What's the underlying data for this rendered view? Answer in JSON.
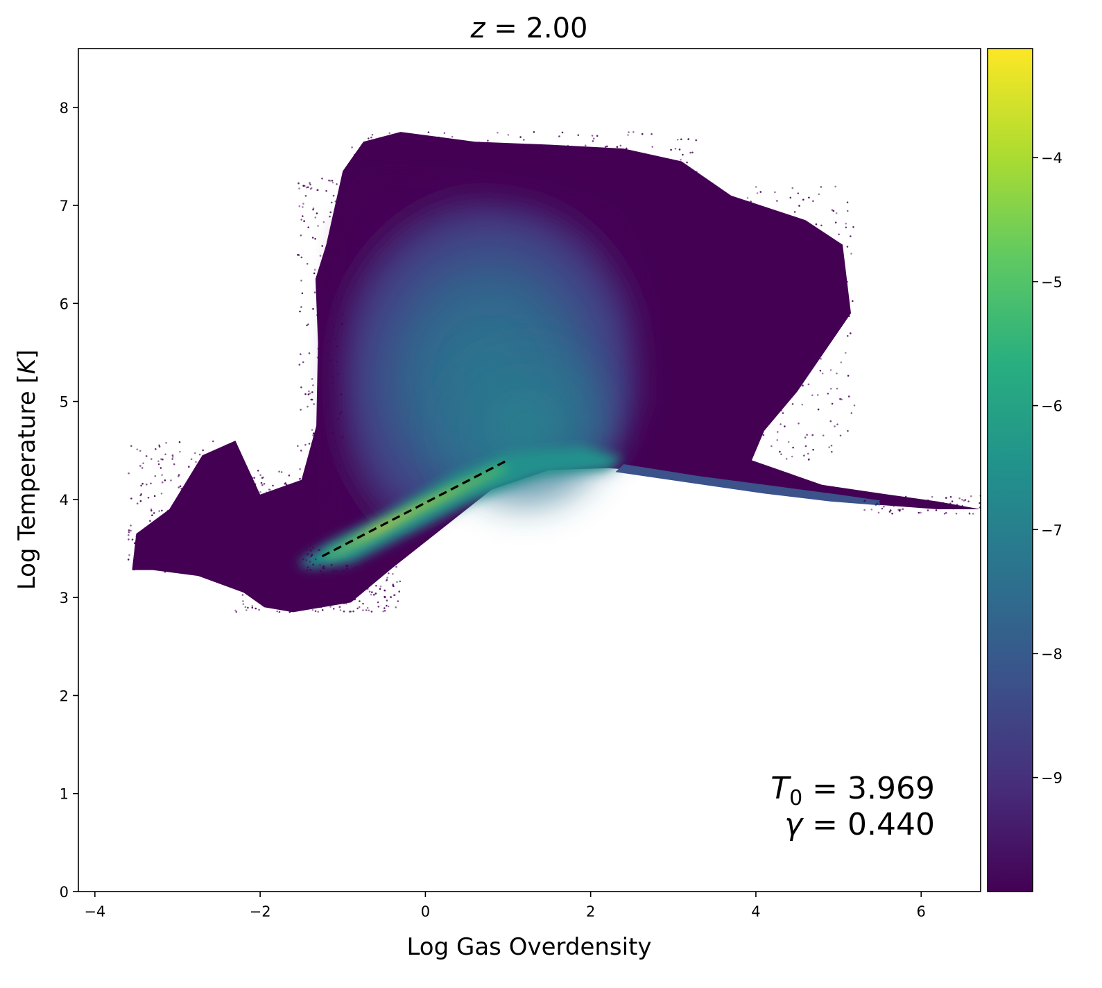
{
  "chart_data": {
    "type": "heatmap",
    "title": {
      "var": "z",
      "eq": " = ",
      "value": "2.00"
    },
    "xlabel": "Log Gas Overdensity",
    "ylabel": {
      "text": "Log Temperature ",
      "bracket_open": "[",
      "unit": "K",
      "bracket_close": "]"
    },
    "xlim": [
      -4.2,
      6.72
    ],
    "ylim": [
      0,
      8.6
    ],
    "x_ticks": [
      {
        "value": -4,
        "label": "−4"
      },
      {
        "value": -2,
        "label": "−2"
      },
      {
        "value": 0,
        "label": "0"
      },
      {
        "value": 2,
        "label": "2"
      },
      {
        "value": 4,
        "label": "4"
      },
      {
        "value": 6,
        "label": "6"
      }
    ],
    "y_ticks": [
      {
        "value": 0,
        "label": "0"
      },
      {
        "value": 1,
        "label": "1"
      },
      {
        "value": 2,
        "label": "2"
      },
      {
        "value": 3,
        "label": "3"
      },
      {
        "value": 4,
        "label": "4"
      },
      {
        "value": 5,
        "label": "5"
      },
      {
        "value": 6,
        "label": "6"
      },
      {
        "value": 7,
        "label": "7"
      },
      {
        "value": 8,
        "label": "8"
      }
    ],
    "grid": false,
    "colormap": "viridis",
    "colorbar": {
      "range": [
        -9.92,
        -3.12
      ],
      "ticks": [
        {
          "value": -4,
          "label": "−4"
        },
        {
          "value": -5,
          "label": "−5"
        },
        {
          "value": -6,
          "label": "−6"
        },
        {
          "value": -7,
          "label": "−7"
        },
        {
          "value": -8,
          "label": "−8"
        },
        {
          "value": -9,
          "label": "−9"
        }
      ]
    },
    "fit_line": {
      "x": [
        -1.25,
        0.97
      ],
      "y": [
        3.42,
        4.39
      ],
      "style": "dashed",
      "color": "#000000"
    },
    "distribution_outline": [
      [
        -3.55,
        3.28
      ],
      [
        -3.5,
        3.65
      ],
      [
        -3.1,
        3.9
      ],
      [
        -2.7,
        4.45
      ],
      [
        -2.3,
        4.6
      ],
      [
        -2.0,
        4.05
      ],
      [
        -1.5,
        4.2
      ],
      [
        -1.32,
        4.75
      ],
      [
        -1.3,
        5.6
      ],
      [
        -1.33,
        6.25
      ],
      [
        -1.2,
        6.6
      ],
      [
        -1.0,
        7.35
      ],
      [
        -0.75,
        7.65
      ],
      [
        -0.3,
        7.75
      ],
      [
        0.6,
        7.65
      ],
      [
        1.5,
        7.62
      ],
      [
        2.4,
        7.58
      ],
      [
        3.1,
        7.45
      ],
      [
        3.7,
        7.1
      ],
      [
        4.6,
        6.85
      ],
      [
        5.05,
        6.6
      ],
      [
        5.15,
        5.9
      ],
      [
        4.5,
        5.1
      ],
      [
        4.1,
        4.7
      ],
      [
        3.95,
        4.4
      ],
      [
        4.8,
        4.15
      ],
      [
        5.6,
        4.05
      ],
      [
        6.2,
        3.98
      ],
      [
        6.72,
        3.9
      ],
      [
        6.2,
        3.9
      ],
      [
        5.4,
        3.95
      ],
      [
        4.5,
        4.05
      ],
      [
        3.6,
        4.17
      ],
      [
        2.9,
        4.28
      ],
      [
        2.2,
        4.32
      ],
      [
        1.5,
        4.3
      ],
      [
        0.8,
        4.1
      ],
      [
        0.2,
        3.7
      ],
      [
        -0.4,
        3.3
      ],
      [
        -0.9,
        2.95
      ],
      [
        -1.6,
        2.85
      ],
      [
        -1.95,
        2.9
      ],
      [
        -2.2,
        3.05
      ],
      [
        -2.75,
        3.22
      ],
      [
        -3.3,
        3.28
      ]
    ],
    "annotations": [
      {
        "symbol": "T",
        "sub": "0",
        "eq": " = ",
        "value": "3.969"
      },
      {
        "symbol": "γ",
        "eq": " = ",
        "value": "0.440"
      }
    ]
  }
}
